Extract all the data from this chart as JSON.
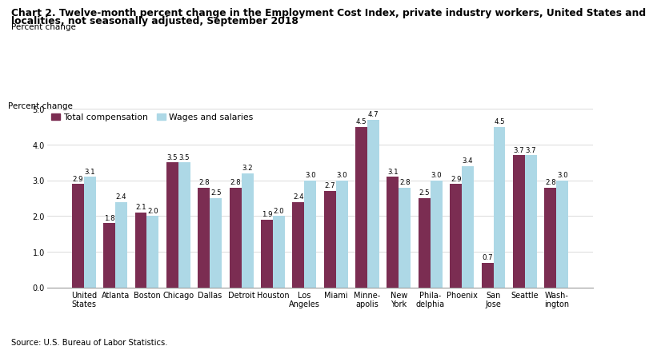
{
  "title_line1": "Chart 2. Twelve-month percent change in the Employment Cost Index, private industry workers, United States and",
  "title_line2": "localities, not seasonally adjusted, September 2018",
  "ylabel": "Percent change",
  "source": "Source: U.S. Bureau of Labor Statistics.",
  "categories": [
    "United\nStates",
    "Atlanta",
    "Boston",
    "Chicago",
    "Dallas",
    "Detroit",
    "Houston",
    "Los\nAngeles",
    "Miami",
    "Minne-\napolis",
    "New\nYork",
    "Phila-\ndelphia",
    "Phoenix",
    "San\nJose",
    "Seattle",
    "Wash-\nington"
  ],
  "total_compensation": [
    2.9,
    1.8,
    2.1,
    3.5,
    2.8,
    2.8,
    1.9,
    2.4,
    2.7,
    4.5,
    3.1,
    2.5,
    2.9,
    0.7,
    3.7,
    2.8
  ],
  "wages_and_salaries": [
    3.1,
    2.4,
    2.0,
    3.5,
    2.5,
    3.2,
    2.0,
    3.0,
    3.0,
    4.7,
    2.8,
    3.0,
    3.4,
    4.5,
    3.7,
    3.0
  ],
  "color_total": "#7B2D52",
  "color_wages": "#ADD8E6",
  "ylim": [
    0.0,
    5.0
  ],
  "yticks": [
    0.0,
    1.0,
    2.0,
    3.0,
    4.0,
    5.0
  ],
  "bar_width": 0.38,
  "legend_labels": [
    "Total compensation",
    "Wages and salaries"
  ],
  "title_fontsize": 8.8,
  "ylabel_fontsize": 7.5,
  "tick_fontsize": 7.0,
  "value_fontsize": 6.2,
  "legend_fontsize": 7.8,
  "source_fontsize": 7.2
}
